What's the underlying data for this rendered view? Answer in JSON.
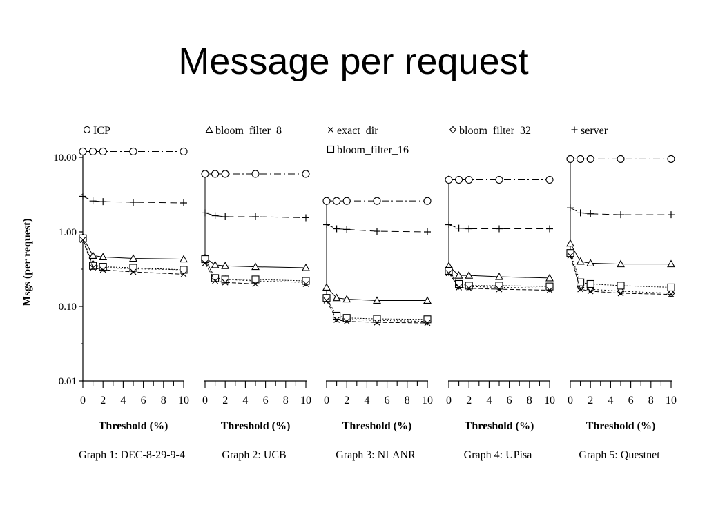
{
  "slide": {
    "title": "Message per request"
  },
  "chart_data": {
    "type": "line",
    "y_scale": "log",
    "ylabel": "Msgs (per request)",
    "ylim": [
      0.01,
      10
    ],
    "y_ticks": [
      0.01,
      0.1,
      1,
      10
    ],
    "y_tick_labels": [
      "0.01",
      "0.10",
      "1.00",
      "10.00"
    ],
    "x_ticks": [
      0,
      2,
      4,
      6,
      8,
      10
    ],
    "x_tick_labels": [
      "0",
      "2",
      "4",
      "6",
      "8",
      "10"
    ],
    "xlabel": "Threshold (%)",
    "x": [
      0,
      1,
      2,
      5,
      10
    ],
    "legend": [
      {
        "panel": 0,
        "label": "ICP",
        "marker": "circle"
      },
      {
        "panel": 1,
        "label": "bloom_filter_8",
        "marker": "triangle"
      },
      {
        "panel": 2,
        "label": "exact_dir",
        "marker": "x"
      },
      {
        "panel": 2,
        "label": "bloom_filter_16",
        "marker": "square"
      },
      {
        "panel": 3,
        "label": "bloom_filter_32",
        "marker": "diamond"
      },
      {
        "panel": 4,
        "label": "server",
        "marker": "plus"
      }
    ],
    "panels": [
      {
        "caption": "Graph 1: DEC-8-29-9-4",
        "series": [
          {
            "name": "ICP",
            "values": [
              12,
              12,
              12,
              12,
              12
            ]
          },
          {
            "name": "server",
            "values": [
              3.0,
              2.6,
              2.55,
              2.5,
              2.45
            ]
          },
          {
            "name": "bloom_filter_8",
            "values": [
              0.85,
              0.48,
              0.46,
              0.44,
              0.43
            ]
          },
          {
            "name": "bloom_filter_32",
            "values": [
              0.8,
              0.37,
              0.33,
              0.32,
              0.31
            ]
          },
          {
            "name": "bloom_filter_16",
            "values": [
              0.82,
              0.35,
              0.34,
              0.33,
              0.31
            ]
          },
          {
            "name": "exact_dir",
            "values": [
              0.78,
              0.33,
              0.31,
              0.29,
              0.27
            ]
          }
        ]
      },
      {
        "caption": "Graph 2: UCB",
        "series": [
          {
            "name": "ICP",
            "values": [
              6.0,
              6.0,
              6.0,
              6.0,
              6.0
            ]
          },
          {
            "name": "server",
            "values": [
              1.8,
              1.65,
              1.6,
              1.6,
              1.55
            ]
          },
          {
            "name": "bloom_filter_8",
            "values": [
              0.45,
              0.36,
              0.35,
              0.34,
              0.33
            ]
          },
          {
            "name": "bloom_filter_32",
            "values": [
              0.42,
              0.24,
              0.23,
              0.22,
              0.21
            ]
          },
          {
            "name": "bloom_filter_16",
            "values": [
              0.43,
              0.24,
              0.23,
              0.23,
              0.22
            ]
          },
          {
            "name": "exact_dir",
            "values": [
              0.38,
              0.22,
              0.21,
              0.2,
              0.2
            ]
          }
        ]
      },
      {
        "caption": "Graph 3: NLANR",
        "series": [
          {
            "name": "ICP",
            "values": [
              2.6,
              2.6,
              2.6,
              2.6,
              2.6
            ]
          },
          {
            "name": "server",
            "values": [
              1.25,
              1.1,
              1.08,
              1.02,
              1.0
            ]
          },
          {
            "name": "bloom_filter_8",
            "values": [
              0.18,
              0.13,
              0.125,
              0.12,
              0.12
            ]
          },
          {
            "name": "bloom_filter_32",
            "values": [
              0.13,
              0.07,
              0.067,
              0.065,
              0.063
            ]
          },
          {
            "name": "bloom_filter_16",
            "values": [
              0.13,
              0.075,
              0.07,
              0.068,
              0.067
            ]
          },
          {
            "name": "exact_dir",
            "values": [
              0.12,
              0.066,
              0.063,
              0.061,
              0.06
            ]
          }
        ]
      },
      {
        "caption": "Graph 4: UPisa",
        "series": [
          {
            "name": "ICP",
            "values": [
              5.0,
              5.0,
              5.0,
              5.0,
              5.0
            ]
          },
          {
            "name": "server",
            "values": [
              1.25,
              1.12,
              1.1,
              1.1,
              1.1
            ]
          },
          {
            "name": "bloom_filter_8",
            "values": [
              0.35,
              0.26,
              0.26,
              0.25,
              0.24
            ]
          },
          {
            "name": "bloom_filter_32",
            "values": [
              0.29,
              0.19,
              0.185,
              0.18,
              0.175
            ]
          },
          {
            "name": "bloom_filter_16",
            "values": [
              0.3,
              0.2,
              0.19,
              0.19,
              0.185
            ]
          },
          {
            "name": "exact_dir",
            "values": [
              0.28,
              0.18,
              0.175,
              0.17,
              0.165
            ]
          }
        ]
      },
      {
        "caption": "Graph 5: Questnet",
        "series": [
          {
            "name": "ICP",
            "values": [
              9.5,
              9.5,
              9.5,
              9.5,
              9.5
            ]
          },
          {
            "name": "server",
            "values": [
              2.1,
              1.8,
              1.75,
              1.7,
              1.7
            ]
          },
          {
            "name": "bloom_filter_8",
            "values": [
              0.7,
              0.4,
              0.38,
              0.37,
              0.37
            ]
          },
          {
            "name": "bloom_filter_32",
            "values": [
              0.5,
              0.18,
              0.17,
              0.16,
              0.15
            ]
          },
          {
            "name": "bloom_filter_16",
            "values": [
              0.52,
              0.21,
              0.2,
              0.19,
              0.18
            ]
          },
          {
            "name": "exact_dir",
            "values": [
              0.48,
              0.17,
              0.16,
              0.15,
              0.145
            ]
          }
        ]
      }
    ]
  }
}
